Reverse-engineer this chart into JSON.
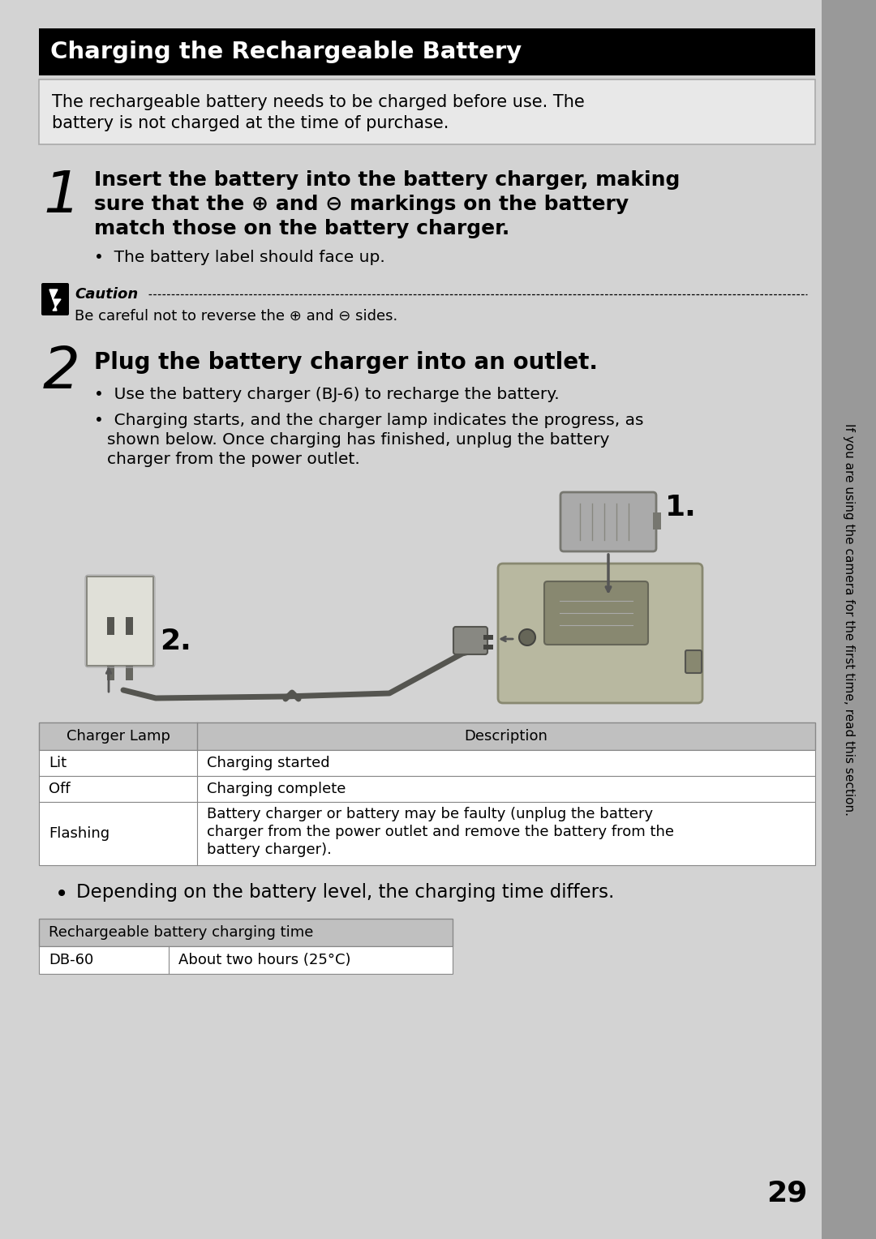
{
  "bg_color": "#d3d3d3",
  "title": "Charging the Rechargeable Battery",
  "title_bg": "#000000",
  "title_fg": "#ffffff",
  "intro_text_line1": "The rechargeable battery needs to be charged before use. The",
  "intro_text_line2": "battery is not charged at the time of purchase.",
  "step1_num": "1",
  "step1_line1": "Insert the battery into the battery charger, making",
  "step1_line2": "sure that the ⊕ and ⊖ markings on the battery",
  "step1_line3": "match those on the battery charger.",
  "step1_bullet": "The battery label should face up.",
  "caution_label": "Caution",
  "caution_text": "Be careful not to reverse the ⊕ and ⊖ sides.",
  "step2_num": "2",
  "step2_bold": "Plug the battery charger into an outlet.",
  "step2_bullet1": "Use the battery charger (BJ-6) to recharge the battery.",
  "step2_bullet2_line1": "Charging starts, and the charger lamp indicates the progress, as",
  "step2_bullet2_line2": "shown below. Once charging has finished, unplug the battery",
  "step2_bullet2_line3": "charger from the power outlet.",
  "table1_col1_header": "Charger Lamp",
  "table1_col2_header": "Description",
  "table1_rows": [
    [
      "Lit",
      "Charging started"
    ],
    [
      "Off",
      "Charging complete"
    ],
    [
      "Flashing",
      "Battery charger or battery may be faulty (unplug the battery\ncharger from the power outlet and remove the battery from the\nbattery charger)."
    ]
  ],
  "bullet_depend": "Depending on the battery level, the charging time differs.",
  "table2_header": "Rechargeable battery charging time",
  "table2_col1": "DB-60",
  "table2_col2": "About two hours (25°C)",
  "page_num": "29",
  "sidebar_text": "If you are using the camera for the first time, read this section.",
  "sidebar_bg": "#999999",
  "intro_box_bg": "#e8e8e8",
  "table_header_bg": "#c0c0c0",
  "table_bg": "#ffffff"
}
